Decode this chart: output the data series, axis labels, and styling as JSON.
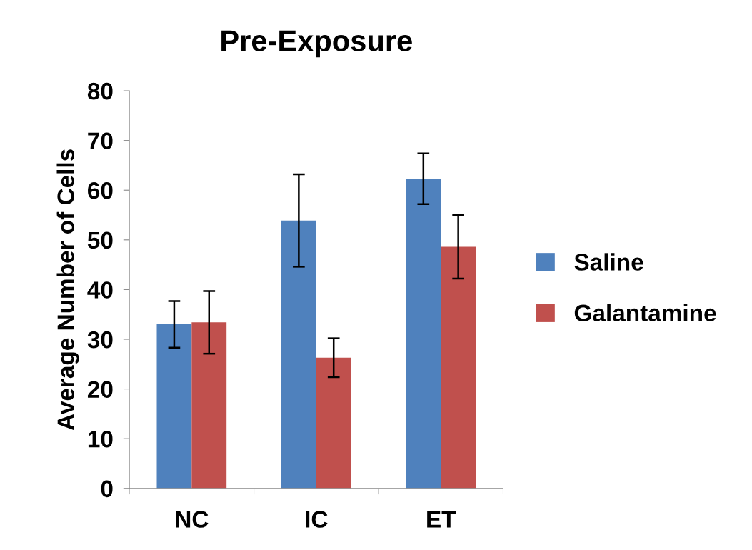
{
  "chart_data": {
    "type": "bar",
    "title": "Pre-Exposure",
    "ylabel": "Average Number of Cells",
    "categories": [
      "NC",
      "IC",
      "ET"
    ],
    "series": [
      {
        "name": "Saline",
        "color": "#4f81bd",
        "values": [
          33.0,
          53.9,
          62.3
        ],
        "errors": [
          4.7,
          9.3,
          5.1
        ]
      },
      {
        "name": "Galantamine",
        "color": "#c0504d",
        "values": [
          33.4,
          26.3,
          48.6
        ],
        "errors": [
          6.3,
          3.9,
          6.4
        ]
      }
    ],
    "ylim": [
      0,
      80
    ],
    "yticks": [
      0,
      10,
      20,
      30,
      40,
      50,
      60,
      70,
      80
    ],
    "grid": false,
    "legend": "right"
  }
}
